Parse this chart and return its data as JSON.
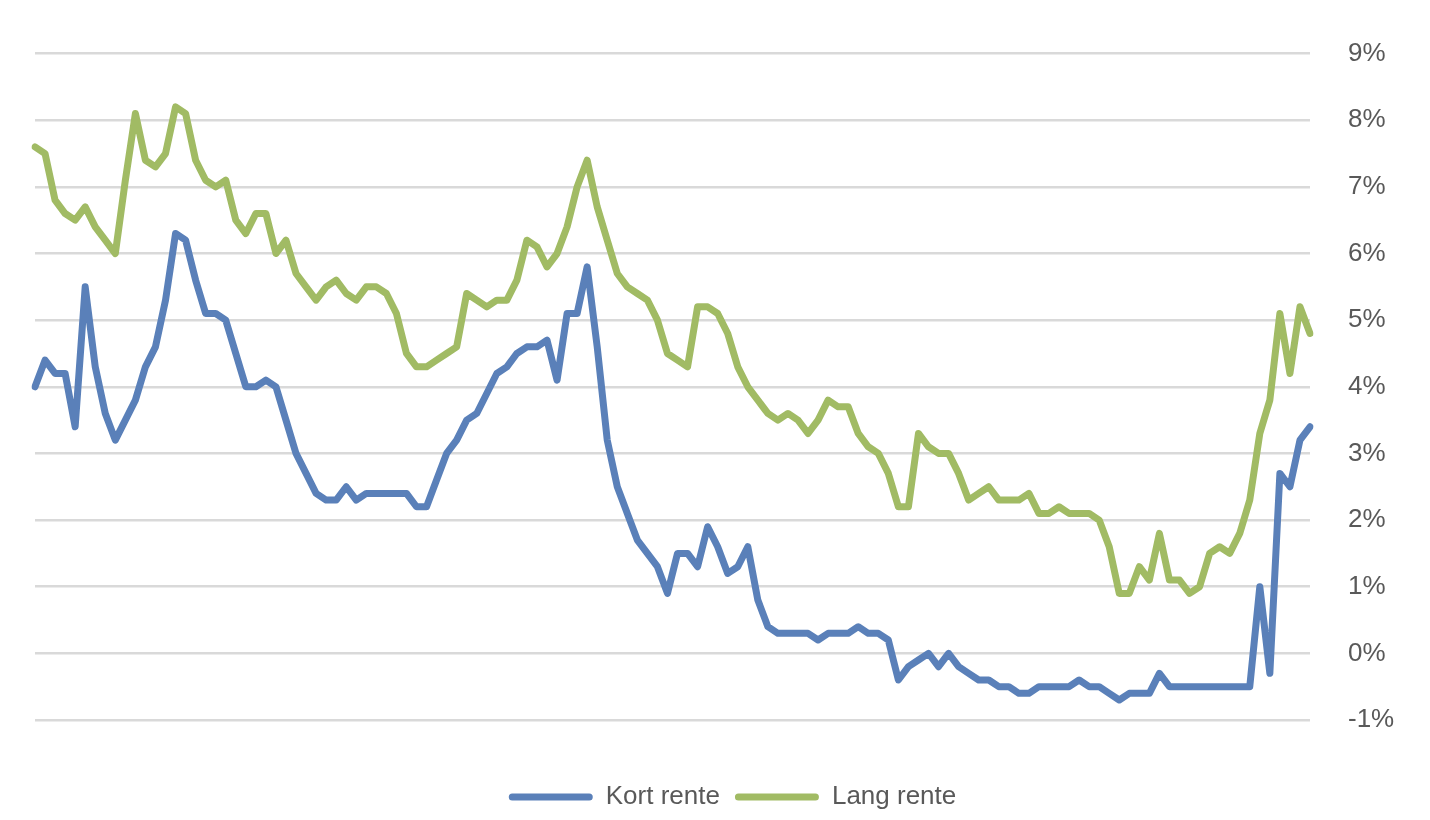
{
  "chart_data": {
    "type": "line",
    "categories": [
      null,
      null,
      null,
      null,
      null,
      null,
      null,
      null,
      null,
      null,
      null,
      null,
      null,
      null,
      null,
      null,
      null,
      null,
      null,
      null,
      null,
      null,
      null,
      null,
      null,
      null,
      null,
      null,
      null,
      null,
      null,
      null,
      null,
      null,
      null,
      null,
      null,
      null,
      null,
      null,
      null,
      null,
      null,
      null,
      null,
      null,
      null,
      null,
      null,
      null,
      null,
      null,
      null,
      null,
      null,
      null,
      null,
      null,
      null,
      null,
      null,
      null,
      null,
      null,
      null,
      null,
      null,
      null,
      null,
      null,
      null,
      null,
      null,
      null,
      null,
      null,
      null,
      null,
      null,
      null,
      null,
      null,
      null,
      null,
      null,
      null,
      null,
      null,
      null,
      null,
      null,
      null,
      null,
      null,
      null,
      null,
      null,
      null,
      null,
      null,
      null,
      null,
      null,
      null,
      null,
      null,
      null,
      null,
      null,
      null,
      null,
      null,
      null,
      null,
      null,
      null,
      null,
      null,
      null,
      null,
      null,
      null,
      null,
      null,
      null,
      null,
      null,
      null
    ],
    "series": [
      {
        "name": "Kort rente",
        "color": "#5a80b9",
        "values": [
          4.0,
          4.4,
          4.2,
          4.2,
          3.4,
          5.5,
          4.3,
          3.6,
          3.2,
          3.5,
          3.8,
          4.3,
          4.6,
          5.3,
          6.3,
          6.2,
          5.6,
          5.1,
          5.1,
          5.0,
          4.5,
          4.0,
          4.0,
          4.1,
          4.0,
          3.5,
          3.0,
          2.7,
          2.4,
          2.3,
          2.3,
          2.5,
          2.3,
          2.4,
          2.4,
          2.4,
          2.4,
          2.4,
          2.2,
          2.2,
          2.6,
          3.0,
          3.2,
          3.5,
          3.6,
          3.9,
          4.2,
          4.3,
          4.5,
          4.6,
          4.6,
          4.7,
          4.1,
          5.1,
          5.1,
          5.8,
          4.6,
          3.2,
          2.5,
          2.1,
          1.7,
          1.5,
          1.3,
          0.9,
          1.5,
          1.5,
          1.3,
          1.9,
          1.6,
          1.2,
          1.3,
          1.6,
          0.8,
          0.4,
          0.3,
          0.3,
          0.3,
          0.3,
          0.2,
          0.3,
          0.3,
          0.3,
          0.4,
          0.3,
          0.3,
          0.2,
          -0.4,
          -0.2,
          -0.1,
          0.0,
          -0.2,
          0.0,
          -0.2,
          -0.3,
          -0.4,
          -0.4,
          -0.5,
          -0.5,
          -0.6,
          -0.6,
          -0.5,
          -0.5,
          -0.5,
          -0.5,
          -0.4,
          -0.5,
          -0.5,
          -0.6,
          -0.7,
          -0.6,
          -0.6,
          -0.6,
          -0.3,
          -0.5,
          -0.5,
          -0.5,
          -0.5,
          -0.5,
          -0.5,
          -0.5,
          -0.5,
          -0.5,
          1.0,
          -0.3,
          2.7,
          2.5,
          3.2,
          3.4
        ]
      },
      {
        "name": "Lang rente",
        "color": "#a1bb64",
        "values": [
          7.6,
          7.5,
          6.8,
          6.6,
          6.5,
          6.7,
          6.4,
          6.2,
          6.0,
          7.1,
          8.1,
          7.4,
          7.3,
          7.5,
          8.2,
          8.1,
          7.4,
          7.1,
          7.0,
          7.1,
          6.5,
          6.3,
          6.6,
          6.6,
          6.0,
          6.2,
          5.7,
          5.5,
          5.3,
          5.5,
          5.6,
          5.4,
          5.3,
          5.5,
          5.5,
          5.4,
          5.1,
          4.5,
          4.3,
          4.3,
          4.4,
          4.5,
          4.6,
          5.4,
          5.3,
          5.2,
          5.3,
          5.3,
          5.6,
          6.2,
          6.1,
          5.8,
          6.0,
          6.4,
          7.0,
          7.4,
          6.7,
          6.2,
          5.7,
          5.5,
          5.4,
          5.3,
          5.0,
          4.5,
          4.4,
          4.3,
          5.2,
          5.2,
          5.1,
          4.8,
          4.3,
          4.0,
          3.8,
          3.6,
          3.5,
          3.6,
          3.5,
          3.3,
          3.5,
          3.8,
          3.7,
          3.7,
          3.3,
          3.1,
          3.0,
          2.7,
          2.2,
          2.2,
          3.3,
          3.1,
          3.0,
          3.0,
          2.7,
          2.3,
          2.4,
          2.5,
          2.3,
          2.3,
          2.3,
          2.4,
          2.1,
          2.1,
          2.2,
          2.1,
          2.1,
          2.1,
          2.0,
          1.6,
          0.9,
          0.9,
          1.3,
          1.1,
          1.8,
          1.1,
          1.1,
          0.9,
          1.0,
          1.5,
          1.6,
          1.5,
          1.8,
          2.3,
          3.3,
          3.8,
          5.1,
          4.2,
          5.2,
          4.8
        ]
      }
    ],
    "ylim": [
      -1,
      9
    ],
    "yticks": [
      {
        "value": -1,
        "label": "-1%"
      },
      {
        "value": 0,
        "label": "0%"
      },
      {
        "value": 1,
        "label": "1%"
      },
      {
        "value": 2,
        "label": "2%"
      },
      {
        "value": 3,
        "label": "3%"
      },
      {
        "value": 4,
        "label": "4%"
      },
      {
        "value": 5,
        "label": "5%"
      },
      {
        "value": 6,
        "label": "6%"
      },
      {
        "value": 7,
        "label": "7%"
      },
      {
        "value": 8,
        "label": "8%"
      },
      {
        "value": 9,
        "label": "9%"
      }
    ],
    "grid": "y",
    "legend": "bottom",
    "tick_labels": "y",
    "marker": "none"
  }
}
